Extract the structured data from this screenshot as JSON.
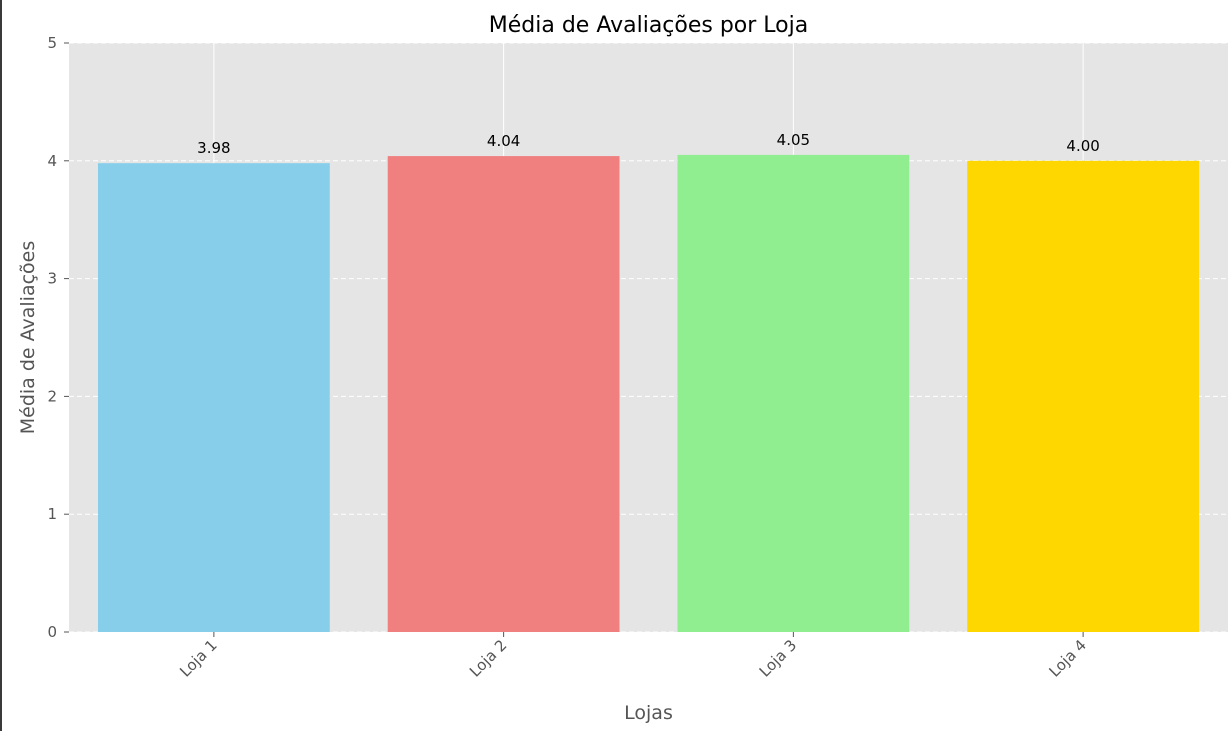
{
  "chart_data": {
    "type": "bar",
    "title": "Média de Avaliações por Loja",
    "xlabel": "Lojas",
    "ylabel": "Média de Avaliações",
    "categories": [
      "Loja 1",
      "Loja 2",
      "Loja 3",
      "Loja 4"
    ],
    "values": [
      3.98,
      4.04,
      4.05,
      4.0
    ],
    "value_labels": [
      "3.98",
      "4.04",
      "4.05",
      "4.00"
    ],
    "colors": [
      "#87ceeb",
      "#f08080",
      "#90ee90",
      "#ffd700"
    ],
    "ylim": [
      0,
      5
    ],
    "yticks": [
      0,
      1,
      2,
      3,
      4,
      5
    ],
    "grid": true,
    "background": "#e5e5e5",
    "xtick_rotation": 45
  }
}
